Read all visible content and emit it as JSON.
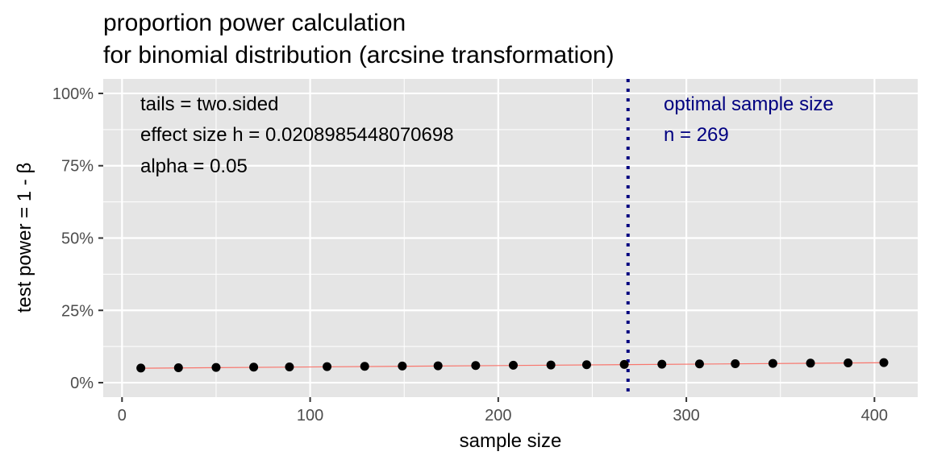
{
  "chart_data": {
    "type": "scatter",
    "title": [
      "proportion power calculation",
      "for binomial distribution (arcsine transformation)"
    ],
    "xlabel": "sample size",
    "ylabel": "test power = 1 - β",
    "xlim": [
      -10,
      423
    ],
    "ylim": [
      -5,
      105
    ],
    "x_ticks": [
      0,
      100,
      200,
      300,
      400
    ],
    "x_tick_labels": [
      "0",
      "100",
      "200",
      "300",
      "400"
    ],
    "y_ticks": [
      0,
      25,
      50,
      75,
      100
    ],
    "y_tick_labels": [
      "0%",
      "25%",
      "50%",
      "75%",
      "100%"
    ],
    "grid": true,
    "series": [
      {
        "x": [
          10,
          30,
          50,
          70,
          89,
          109,
          129,
          149,
          168,
          188,
          208,
          228,
          247,
          267,
          287,
          307,
          326,
          346,
          366,
          386,
          405
        ],
        "y": [
          5.05,
          5.16,
          5.26,
          5.36,
          5.45,
          5.55,
          5.65,
          5.75,
          5.84,
          5.93,
          6.03,
          6.12,
          6.21,
          6.3,
          6.39,
          6.48,
          6.57,
          6.66,
          6.75,
          6.84,
          6.93
        ]
      }
    ],
    "trend_line": {
      "x": [
        10,
        405
      ],
      "y": [
        5.0,
        6.9
      ]
    },
    "vline": {
      "x": 269
    },
    "annotations_left": [
      "tails = two.sided",
      "effect size h = 0.0208985448070698",
      "alpha = 0.05"
    ],
    "annotations_right": [
      "optimal sample size",
      "n = 269"
    ],
    "colors": {
      "panel_bg": "#e5e5e5",
      "grid": "#ffffff",
      "point": "#000000",
      "trend": "#f8766d",
      "vline": "#000080",
      "right_annotation": "#000080"
    }
  }
}
